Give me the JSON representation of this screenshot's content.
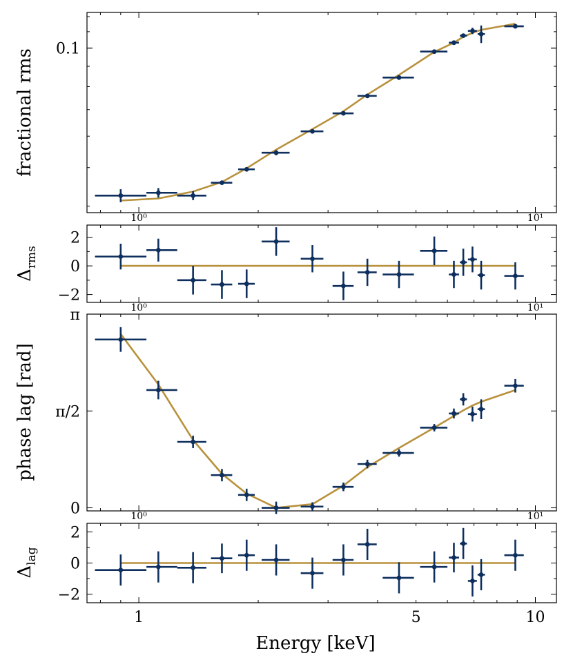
{
  "figure": {
    "xlabel": "Energy [keV]",
    "shared_x_ticks": [
      "1",
      "5",
      "10"
    ],
    "inner_x_ticks": [
      "10⁰",
      "10¹"
    ]
  },
  "colors": {
    "data": "#0e2f5e",
    "model": "#b8913c"
  },
  "chart_data": [
    {
      "id": "rms",
      "type": "scatter",
      "yscale": "log",
      "ylabel": "fractional rms",
      "ylim": [
        0.0385,
        0.123
      ],
      "yticks": [
        {
          "value": 0.1,
          "label": "0.1"
        }
      ],
      "ylabel_tick": "0.1",
      "points": [
        {
          "x": 0.9,
          "y": 0.0425,
          "xlo": 0.775,
          "xhi": 1.045,
          "yerr": 0.0016
        },
        {
          "x": 1.12,
          "y": 0.0432,
          "xlo": 1.045,
          "xhi": 1.25,
          "yerr": 0.0012
        },
        {
          "x": 1.37,
          "y": 0.0425,
          "xlo": 1.25,
          "xhi": 1.48,
          "yerr": 0.0011
        },
        {
          "x": 1.62,
          "y": 0.0458,
          "xlo": 1.52,
          "xhi": 1.72,
          "yerr": 0.0005
        },
        {
          "x": 1.87,
          "y": 0.0495,
          "xlo": 1.78,
          "xhi": 1.96,
          "yerr": 0.0006
        },
        {
          "x": 2.22,
          "y": 0.0545,
          "xlo": 2.04,
          "xhi": 2.4,
          "yerr": 0.0008
        },
        {
          "x": 2.74,
          "y": 0.0617,
          "xlo": 2.56,
          "xhi": 2.92,
          "yerr": 0.0007
        },
        {
          "x": 3.28,
          "y": 0.0685,
          "xlo": 3.08,
          "xhi": 3.48,
          "yerr": 0.0007
        },
        {
          "x": 3.77,
          "y": 0.0758,
          "xlo": 3.56,
          "xhi": 3.98,
          "yerr": 0.0008
        },
        {
          "x": 4.53,
          "y": 0.0843,
          "xlo": 4.12,
          "xhi": 4.94,
          "yerr": 0.0009
        },
        {
          "x": 5.56,
          "y": 0.098,
          "xlo": 5.12,
          "xhi": 6.0,
          "yerr": 0.001
        },
        {
          "x": 6.23,
          "y": 0.1032,
          "xlo": 6.05,
          "xhi": 6.42,
          "yerr": 0.0012
        },
        {
          "x": 6.58,
          "y": 0.1075,
          "xlo": 6.45,
          "xhi": 6.72,
          "yerr": 0.0012
        },
        {
          "x": 6.94,
          "y": 0.1105,
          "xlo": 6.76,
          "xhi": 7.12,
          "yerr": 0.002
        },
        {
          "x": 7.3,
          "y": 0.1085,
          "xlo": 7.15,
          "xhi": 7.46,
          "yerr": 0.0055
        },
        {
          "x": 8.9,
          "y": 0.1135,
          "xlo": 8.35,
          "xhi": 9.35,
          "yerr": 0.0012
        }
      ],
      "model": [
        [
          0.9,
          0.0413
        ],
        [
          1.12,
          0.0418
        ],
        [
          1.37,
          0.0435
        ],
        [
          1.62,
          0.046
        ],
        [
          1.87,
          0.0498
        ],
        [
          2.22,
          0.0555
        ],
        [
          2.74,
          0.0625
        ],
        [
          3.28,
          0.0693
        ],
        [
          3.77,
          0.0764
        ],
        [
          4.53,
          0.0856
        ],
        [
          5.56,
          0.0978
        ],
        [
          6.23,
          0.1032
        ],
        [
          6.58,
          0.1068
        ],
        [
          6.94,
          0.1092
        ],
        [
          7.3,
          0.1112
        ],
        [
          8.9,
          0.1152
        ]
      ]
    },
    {
      "id": "drms",
      "type": "scatter",
      "yscale": "linear",
      "ylabel": "Δ",
      "ylabel_sub": "rms",
      "ylim": [
        -2.55,
        2.85
      ],
      "yticks": [
        {
          "value": 2,
          "label": "2"
        },
        {
          "value": 0,
          "label": "0"
        },
        {
          "value": -2,
          "label": "−2"
        }
      ],
      "points": [
        {
          "x": 0.9,
          "y": 0.65,
          "xlo": 0.775,
          "xhi": 1.045,
          "yerr": 0.9
        },
        {
          "x": 1.12,
          "y": 1.1,
          "xlo": 1.045,
          "xhi": 1.25,
          "yerr": 0.8
        },
        {
          "x": 1.37,
          "y": -1.0,
          "xlo": 1.25,
          "xhi": 1.48,
          "yerr": 1.0
        },
        {
          "x": 1.62,
          "y": -1.3,
          "xlo": 1.52,
          "xhi": 1.72,
          "yerr": 1.0
        },
        {
          "x": 1.87,
          "y": -1.25,
          "xlo": 1.78,
          "xhi": 1.96,
          "yerr": 1.0
        },
        {
          "x": 2.22,
          "y": 1.7,
          "xlo": 2.04,
          "xhi": 2.4,
          "yerr": 1.0
        },
        {
          "x": 2.74,
          "y": 0.5,
          "xlo": 2.56,
          "xhi": 2.92,
          "yerr": 0.95
        },
        {
          "x": 3.28,
          "y": -1.4,
          "xlo": 3.08,
          "xhi": 3.48,
          "yerr": 1.0
        },
        {
          "x": 3.77,
          "y": -0.45,
          "xlo": 3.56,
          "xhi": 3.98,
          "yerr": 0.95
        },
        {
          "x": 4.53,
          "y": -0.6,
          "xlo": 4.12,
          "xhi": 4.94,
          "yerr": 0.95
        },
        {
          "x": 5.56,
          "y": 1.05,
          "xlo": 5.12,
          "xhi": 6.0,
          "yerr": 1.0
        },
        {
          "x": 6.23,
          "y": -0.6,
          "xlo": 6.05,
          "xhi": 6.42,
          "yerr": 0.95
        },
        {
          "x": 6.58,
          "y": 0.25,
          "xlo": 6.45,
          "xhi": 6.72,
          "yerr": 0.95
        },
        {
          "x": 6.94,
          "y": 0.45,
          "xlo": 6.76,
          "xhi": 7.12,
          "yerr": 0.9
        },
        {
          "x": 7.3,
          "y": -0.65,
          "xlo": 7.15,
          "xhi": 7.46,
          "yerr": 1.0
        },
        {
          "x": 8.9,
          "y": -0.7,
          "xlo": 8.35,
          "xhi": 9.35,
          "yerr": 0.95
        }
      ],
      "model": [
        [
          0.9,
          0
        ],
        [
          8.9,
          0
        ]
      ]
    },
    {
      "id": "lag",
      "type": "scatter",
      "yscale": "linear",
      "ylabel": "phase lag [rad]",
      "ylim": [
        -0.05,
        3.1416
      ],
      "yticks": [
        {
          "value": 3.1416,
          "label": "π"
        },
        {
          "value": 1.5708,
          "label": "π/2"
        },
        {
          "value": 0,
          "label": "0"
        }
      ],
      "points": [
        {
          "x": 0.9,
          "y": 2.73,
          "xlo": 0.775,
          "xhi": 1.045,
          "yerr": 0.2
        },
        {
          "x": 1.12,
          "y": 1.91,
          "xlo": 1.045,
          "xhi": 1.25,
          "yerr": 0.15
        },
        {
          "x": 1.37,
          "y": 1.07,
          "xlo": 1.25,
          "xhi": 1.48,
          "yerr": 0.1
        },
        {
          "x": 1.62,
          "y": 0.53,
          "xlo": 1.52,
          "xhi": 1.72,
          "yerr": 0.1
        },
        {
          "x": 1.87,
          "y": 0.21,
          "xlo": 1.78,
          "xhi": 1.96,
          "yerr": 0.1
        },
        {
          "x": 2.22,
          "y": 0.0,
          "xlo": 2.04,
          "xhi": 2.4,
          "yerr": 0.1
        },
        {
          "x": 2.74,
          "y": 0.02,
          "xlo": 2.56,
          "xhi": 2.92,
          "yerr": 0.07
        },
        {
          "x": 3.28,
          "y": 0.34,
          "xlo": 3.08,
          "xhi": 3.48,
          "yerr": 0.07
        },
        {
          "x": 3.77,
          "y": 0.71,
          "xlo": 3.56,
          "xhi": 3.98,
          "yerr": 0.07
        },
        {
          "x": 4.53,
          "y": 0.89,
          "xlo": 4.12,
          "xhi": 4.94,
          "yerr": 0.06
        },
        {
          "x": 5.56,
          "y": 1.3,
          "xlo": 5.12,
          "xhi": 6.0,
          "yerr": 0.06
        },
        {
          "x": 6.23,
          "y": 1.53,
          "xlo": 6.05,
          "xhi": 6.42,
          "yerr": 0.08
        },
        {
          "x": 6.58,
          "y": 1.76,
          "xlo": 6.45,
          "xhi": 6.72,
          "yerr": 0.1
        },
        {
          "x": 6.94,
          "y": 1.52,
          "xlo": 6.76,
          "xhi": 7.12,
          "yerr": 0.12
        },
        {
          "x": 7.3,
          "y": 1.6,
          "xlo": 7.15,
          "xhi": 7.46,
          "yerr": 0.16
        },
        {
          "x": 8.9,
          "y": 1.98,
          "xlo": 8.35,
          "xhi": 9.35,
          "yerr": 0.11
        }
      ],
      "model": [
        [
          0.9,
          2.82
        ],
        [
          1.12,
          2.0
        ],
        [
          1.37,
          1.1
        ],
        [
          1.62,
          0.55
        ],
        [
          1.87,
          0.23
        ],
        [
          2.22,
          0.0
        ],
        [
          2.74,
          0.06
        ],
        [
          3.28,
          0.36
        ],
        [
          3.77,
          0.66
        ],
        [
          4.53,
          0.97
        ],
        [
          5.56,
          1.3
        ],
        [
          6.23,
          1.49
        ],
        [
          6.58,
          1.58
        ],
        [
          6.94,
          1.66
        ],
        [
          7.3,
          1.72
        ],
        [
          8.9,
          1.91
        ]
      ]
    },
    {
      "id": "dlag",
      "type": "scatter",
      "yscale": "linear",
      "ylabel": "Δ",
      "ylabel_sub": "lag",
      "ylim": [
        -2.55,
        2.55
      ],
      "yticks": [
        {
          "value": 2,
          "label": "2"
        },
        {
          "value": 0,
          "label": "0"
        },
        {
          "value": -2,
          "label": "−2"
        }
      ],
      "points": [
        {
          "x": 0.9,
          "y": -0.45,
          "xlo": 0.775,
          "xhi": 1.045,
          "yerr": 1.0
        },
        {
          "x": 1.12,
          "y": -0.25,
          "xlo": 1.045,
          "xhi": 1.25,
          "yerr": 1.0
        },
        {
          "x": 1.37,
          "y": -0.3,
          "xlo": 1.25,
          "xhi": 1.48,
          "yerr": 1.0
        },
        {
          "x": 1.62,
          "y": 0.3,
          "xlo": 1.52,
          "xhi": 1.72,
          "yerr": 0.95
        },
        {
          "x": 1.87,
          "y": 0.5,
          "xlo": 1.78,
          "xhi": 1.96,
          "yerr": 1.0
        },
        {
          "x": 2.22,
          "y": 0.2,
          "xlo": 2.04,
          "xhi": 2.4,
          "yerr": 1.0
        },
        {
          "x": 2.74,
          "y": -0.65,
          "xlo": 2.56,
          "xhi": 2.92,
          "yerr": 1.0
        },
        {
          "x": 3.28,
          "y": 0.2,
          "xlo": 3.08,
          "xhi": 3.48,
          "yerr": 1.0
        },
        {
          "x": 3.77,
          "y": 1.2,
          "xlo": 3.56,
          "xhi": 3.98,
          "yerr": 1.0
        },
        {
          "x": 4.53,
          "y": -0.95,
          "xlo": 4.12,
          "xhi": 4.94,
          "yerr": 1.0
        },
        {
          "x": 5.56,
          "y": -0.25,
          "xlo": 5.12,
          "xhi": 6.0,
          "yerr": 1.0
        },
        {
          "x": 6.23,
          "y": 0.35,
          "xlo": 6.05,
          "xhi": 6.42,
          "yerr": 0.95
        },
        {
          "x": 6.58,
          "y": 1.25,
          "xlo": 6.45,
          "xhi": 6.72,
          "yerr": 1.0
        },
        {
          "x": 6.94,
          "y": -1.15,
          "xlo": 6.76,
          "xhi": 7.12,
          "yerr": 1.0
        },
        {
          "x": 7.3,
          "y": -0.75,
          "xlo": 7.15,
          "xhi": 7.46,
          "yerr": 1.0
        },
        {
          "x": 8.9,
          "y": 0.5,
          "xlo": 8.35,
          "xhi": 9.35,
          "yerr": 1.0
        }
      ],
      "model": [
        [
          0.9,
          0
        ],
        [
          8.9,
          0
        ]
      ]
    }
  ],
  "x_axis": {
    "scale": "log",
    "xlim": [
      0.74,
      11.3
    ]
  }
}
